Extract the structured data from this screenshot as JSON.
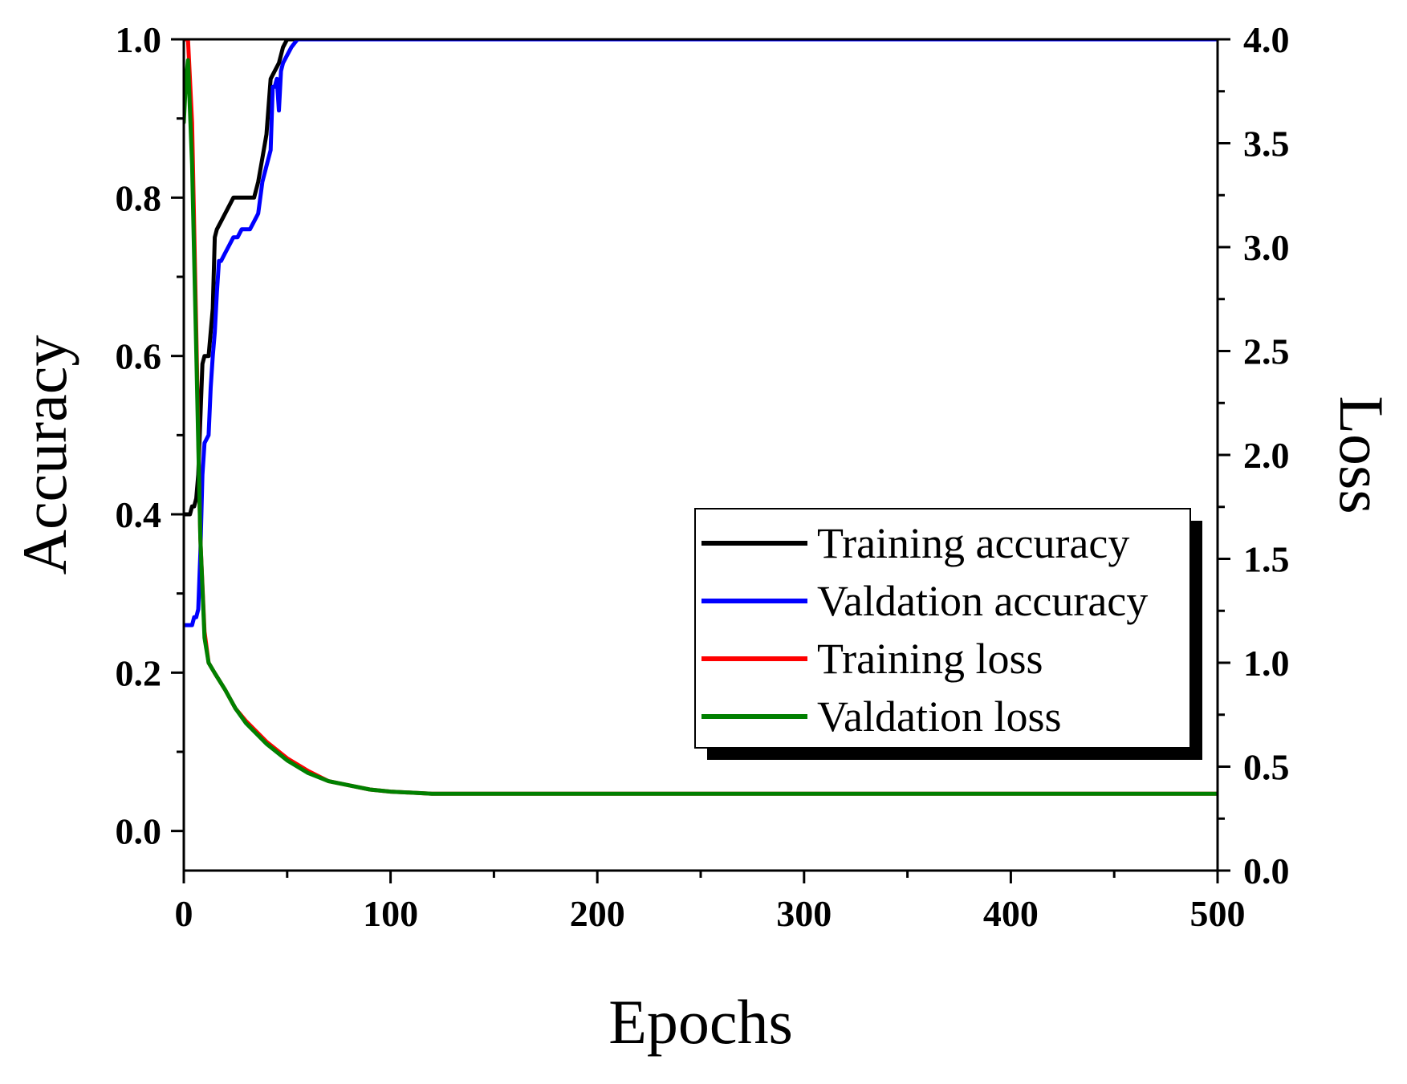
{
  "chart_data": {
    "type": "line",
    "title": "",
    "xlabel": "Epochs",
    "ylabel_left": "Accuracy",
    "ylabel_right": "Loss",
    "xlim": [
      0,
      500
    ],
    "ylim_left": [
      -0.05,
      1.0
    ],
    "ylim_right": [
      0.0,
      4.0
    ],
    "x_ticks": [
      0,
      100,
      200,
      300,
      400,
      500
    ],
    "x_tick_labels": [
      "0",
      "100",
      "200",
      "300",
      "400",
      "500"
    ],
    "y_left_ticks": [
      0.0,
      0.2,
      0.4,
      0.6,
      0.8,
      1.0
    ],
    "y_left_tick_labels": [
      "0.0",
      "0.2",
      "0.4",
      "0.6",
      "0.8",
      "1.0"
    ],
    "y_right_ticks": [
      0.0,
      0.5,
      1.0,
      1.5,
      2.0,
      2.5,
      3.0,
      3.5,
      4.0
    ],
    "y_right_tick_labels": [
      "0.0",
      "0.5",
      "1.0",
      "1.5",
      "2.0",
      "2.5",
      "3.0",
      "3.5",
      "4.0"
    ],
    "grid": false,
    "legend_position": "lower-right",
    "series": [
      {
        "name": "Training accuracy",
        "axis": "left",
        "color": "#000000",
        "x": [
          0,
          1,
          2,
          3,
          4,
          5,
          6,
          7,
          8,
          9,
          10,
          12,
          14,
          15,
          16,
          18,
          20,
          22,
          24,
          26,
          28,
          30,
          34,
          36,
          38,
          40,
          42,
          44,
          46,
          48,
          50,
          55,
          60,
          80,
          100,
          150,
          200,
          250,
          300,
          350,
          400,
          450,
          500
        ],
        "y": [
          0.4,
          0.4,
          0.4,
          0.4,
          0.41,
          0.41,
          0.42,
          0.45,
          0.52,
          0.59,
          0.6,
          0.6,
          0.66,
          0.75,
          0.76,
          0.77,
          0.78,
          0.79,
          0.8,
          0.8,
          0.8,
          0.8,
          0.8,
          0.82,
          0.85,
          0.88,
          0.95,
          0.96,
          0.97,
          0.99,
          1.0,
          1.0,
          1.0,
          1.0,
          1.0,
          1.0,
          1.0,
          1.0,
          1.0,
          1.0,
          1.0,
          1.0,
          1.0
        ]
      },
      {
        "name": "Valdation accuracy",
        "axis": "left",
        "color": "#0000ff",
        "x": [
          0,
          2,
          4,
          5,
          6,
          7,
          8,
          9,
          10,
          12,
          13,
          14,
          15,
          16,
          17,
          18,
          20,
          22,
          24,
          26,
          28,
          30,
          32,
          34,
          36,
          38,
          40,
          42,
          43,
          44,
          45,
          46,
          47,
          48,
          50,
          52,
          55,
          60,
          80,
          100,
          150,
          200,
          250,
          300,
          350,
          400,
          450,
          500
        ],
        "y": [
          0.26,
          0.26,
          0.26,
          0.27,
          0.27,
          0.28,
          0.35,
          0.45,
          0.49,
          0.5,
          0.56,
          0.6,
          0.63,
          0.68,
          0.72,
          0.72,
          0.73,
          0.74,
          0.75,
          0.75,
          0.76,
          0.76,
          0.76,
          0.77,
          0.78,
          0.82,
          0.84,
          0.86,
          0.94,
          0.94,
          0.95,
          0.91,
          0.96,
          0.97,
          0.98,
          0.99,
          1.0,
          1.0,
          1.0,
          1.0,
          1.0,
          1.0,
          1.0,
          1.0,
          1.0,
          1.0,
          1.0,
          1.0
        ]
      },
      {
        "name": "Training loss",
        "axis": "right",
        "color": "#ff0000",
        "x": [
          0,
          2,
          4,
          6,
          8,
          10,
          12,
          15,
          20,
          25,
          30,
          40,
          50,
          60,
          70,
          80,
          90,
          100,
          120,
          150,
          200,
          250,
          300,
          350,
          400,
          450,
          500
        ],
        "y": [
          4.0,
          4.0,
          3.6,
          2.6,
          1.6,
          1.15,
          1.0,
          0.95,
          0.87,
          0.78,
          0.72,
          0.62,
          0.54,
          0.48,
          0.43,
          0.41,
          0.39,
          0.38,
          0.37,
          0.37,
          0.37,
          0.37,
          0.37,
          0.37,
          0.37,
          0.37,
          0.37
        ]
      },
      {
        "name": "Valdation loss",
        "axis": "right",
        "color": "#008000",
        "x": [
          0,
          1,
          2,
          4,
          6,
          8,
          10,
          12,
          15,
          20,
          25,
          30,
          40,
          50,
          60,
          70,
          80,
          90,
          100,
          120,
          150,
          200,
          250,
          300,
          350,
          400,
          450,
          500
        ],
        "y": [
          3.6,
          3.8,
          3.9,
          3.4,
          2.5,
          1.6,
          1.12,
          1.0,
          0.95,
          0.87,
          0.78,
          0.71,
          0.61,
          0.53,
          0.47,
          0.43,
          0.41,
          0.39,
          0.38,
          0.37,
          0.37,
          0.37,
          0.37,
          0.37,
          0.37,
          0.37,
          0.37,
          0.37
        ]
      }
    ]
  }
}
